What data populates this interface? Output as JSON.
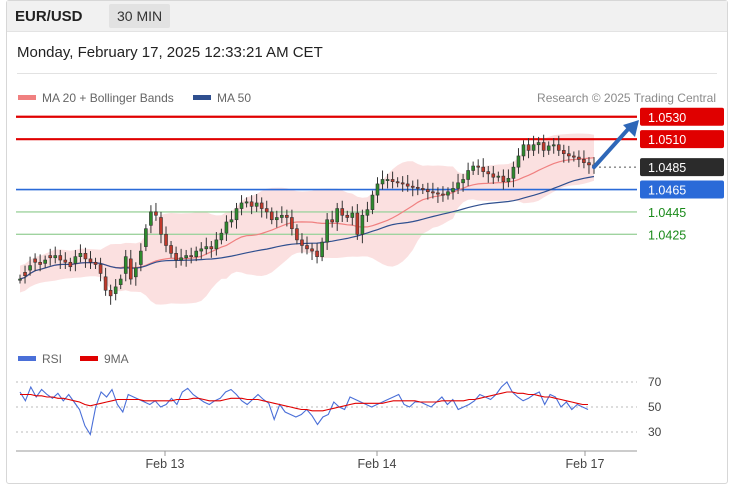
{
  "header": {
    "pair": "EUR/USD",
    "timeframe": "30 MIN"
  },
  "timestamp": "Monday, February 17, 2025 12:33:21 AM CET",
  "colors": {
    "ma20": "#f08080",
    "ma50": "#2f4f8f",
    "resistance": "#e00000",
    "support_blue": "#2a6ad8",
    "support_green": "#1a8a1a",
    "current": "#2b2b2b",
    "rsi": "#4a6fd8",
    "rsi_ma": "#e00000",
    "candle_up": "#2d8a2d",
    "candle_down": "#c0392b",
    "arrow": "#2e67b8"
  },
  "icons": {
    "projection": "arrow-up-right-icon"
  },
  "chart_data": [
    {
      "type": "candlestick",
      "legend": [
        {
          "name": "MA 20 + Bollinger Bands",
          "color": "#f08080"
        },
        {
          "name": "MA 50",
          "color": "#2f4f8f"
        }
      ],
      "legend_position": "top-left",
      "credit": "Research © 2025 Trading Central",
      "x_ticks": [
        "Feb 13",
        "Feb 14",
        "Feb 17"
      ],
      "ylim": [
        1.0335,
        1.0545
      ],
      "levels": [
        {
          "value": 1.053,
          "label": "1.0530",
          "kind": "resistance"
        },
        {
          "value": 1.051,
          "label": "1.0510",
          "kind": "resistance"
        },
        {
          "value": 1.0485,
          "label": "1.0485",
          "kind": "current"
        },
        {
          "value": 1.0465,
          "label": "1.0465",
          "kind": "support_blue"
        },
        {
          "value": 1.0445,
          "label": "1.0445",
          "kind": "support_green"
        },
        {
          "value": 1.0425,
          "label": "1.0425",
          "kind": "support_green"
        }
      ],
      "close": [
        1.0385,
        1.0388,
        1.0397,
        1.04,
        1.0398,
        1.0402,
        1.0404,
        1.0406,
        1.0402,
        1.04,
        1.0396,
        1.0405,
        1.0408,
        1.0403,
        1.04,
        1.0398,
        1.039,
        1.0375,
        1.037,
        1.0378,
        1.0385,
        1.0405,
        1.0385,
        1.0395,
        1.041,
        1.043,
        1.0445,
        1.0442,
        1.0425,
        1.0415,
        1.0408,
        1.0402,
        1.0404,
        1.0406,
        1.0405,
        1.041,
        1.0412,
        1.0414,
        1.0412,
        1.042,
        1.0426,
        1.0436,
        1.0438,
        1.0448,
        1.0453,
        1.0454,
        1.045,
        1.0453,
        1.0448,
        1.0445,
        1.0438,
        1.044,
        1.0442,
        1.044,
        1.043,
        1.042,
        1.0415,
        1.0412,
        1.041,
        1.0405,
        1.0418,
        1.0438,
        1.0436,
        1.0448,
        1.0442,
        1.044,
        1.0444,
        1.0425,
        1.0442,
        1.0447,
        1.046,
        1.047,
        1.0474,
        1.0474,
        1.0472,
        1.0471,
        1.047,
        1.0468,
        1.0467,
        1.0466,
        1.0465,
        1.0463,
        1.0462,
        1.0461,
        1.046,
        1.0463,
        1.0466,
        1.0471,
        1.0474,
        1.0482,
        1.0486,
        1.0485,
        1.0481,
        1.0479,
        1.0476,
        1.0477,
        1.0472,
        1.0475,
        1.0485,
        1.0495,
        1.0505,
        1.05,
        1.0505,
        1.0507,
        1.05,
        1.0504,
        1.0505,
        1.05,
        1.0497,
        1.0495,
        1.0494,
        1.0492,
        1.0489,
        1.0487,
        1.0485
      ],
      "open_offset": [
        0,
        0.0003,
        -0.0004,
        0.0003,
        0.0002,
        -0.0003,
        0.0002,
        -0.0002,
        0.0004,
        0.0002,
        0.0004,
        -0.0006,
        -0.0003,
        0.0005,
        0.0003,
        0.0002,
        0.0008,
        0.0012,
        0.0005,
        -0.0006,
        -0.0005,
        -0.0015,
        0.0018,
        -0.0008,
        -0.0012,
        -0.0016,
        -0.0012,
        0.0003,
        0.0015,
        0.001,
        0.0007,
        0.0006,
        -0.0002,
        -0.0002,
        0.0001,
        -0.0005,
        -0.0002,
        -0.0002,
        0.0002,
        -0.0008,
        -0.0006,
        -0.001,
        -0.0002,
        -0.001,
        -0.0005,
        -0.0001,
        0.0004,
        -0.0003,
        0.0005,
        0.0003,
        0.0007,
        -0.0002,
        -0.0002,
        0.0002,
        0.001,
        0.001,
        0.0005,
        0.0003,
        0.0002,
        0.0005,
        -0.0013,
        -0.002,
        0.0002,
        -0.0012,
        0.0006,
        0.0002,
        -0.0004,
        0.0019,
        -0.0017,
        -0.0005,
        -0.0013,
        -0.001,
        -0.0004,
        0,
        0.0002,
        0.0001,
        0.0001,
        0.0002,
        0.0001,
        0.0001,
        0.0001,
        0.0002,
        0.0001,
        0.0001,
        0.0001,
        -0.0003,
        -0.0003,
        -0.0005,
        -0.0003,
        -0.0008,
        -0.0004,
        0.0001,
        0.0004,
        0.0002,
        0.0003,
        -0.0001,
        0.0005,
        -0.0003,
        -0.001,
        -0.001,
        -0.001,
        0.0005,
        -0.0005,
        -0.0002,
        0.0007,
        -0.0004,
        -0.0001,
        0.0005,
        0.0003,
        0.0002,
        0.0001,
        0.0002,
        0.0003,
        0.0002,
        0.0002
      ],
      "projection": {
        "from": 1.0485,
        "to": 1.053
      }
    },
    {
      "type": "line",
      "legend": [
        {
          "name": "RSI",
          "color": "#4a6fd8"
        },
        {
          "name": "9MA",
          "color": "#e00000"
        }
      ],
      "y_ticks": [
        "70",
        "50",
        "30"
      ],
      "ylim": [
        22,
        78
      ],
      "rsi": [
        62,
        55,
        66,
        58,
        64,
        60,
        57,
        61,
        55,
        60,
        54,
        48,
        35,
        28,
        50,
        62,
        58,
        64,
        52,
        46,
        60,
        58,
        56,
        54,
        52,
        55,
        50,
        52,
        57,
        52,
        62,
        65,
        60,
        57,
        54,
        52,
        55,
        57,
        62,
        64,
        60,
        55,
        52,
        56,
        60,
        56,
        53,
        40,
        52,
        46,
        44,
        42,
        44,
        48,
        43,
        36,
        42,
        44,
        54,
        50,
        48,
        58,
        56,
        54,
        52,
        50,
        52,
        54,
        56,
        58,
        60,
        52,
        50,
        54,
        54,
        52,
        50,
        54,
        58,
        52,
        56,
        48,
        50,
        52,
        55,
        60,
        58,
        56,
        60,
        66,
        70,
        62,
        58,
        55,
        57,
        60,
        62,
        52,
        60,
        58,
        50,
        54,
        48,
        52,
        50,
        48
      ],
      "rsi_ma": [
        60,
        60,
        60,
        59,
        59,
        58,
        58,
        57,
        57,
        56,
        55,
        54,
        52,
        51,
        52,
        53,
        54,
        55,
        56,
        56,
        56,
        56,
        56,
        55,
        55,
        55,
        55,
        55,
        55,
        56,
        56,
        56,
        57,
        57,
        56,
        55,
        55,
        55,
        56,
        57,
        57,
        57,
        56,
        56,
        56,
        55,
        54,
        53,
        52,
        51,
        50,
        49,
        48,
        48,
        47,
        47,
        47,
        48,
        49,
        50,
        51,
        52,
        53,
        53,
        53,
        53,
        53,
        53,
        54,
        55,
        55,
        55,
        55,
        55,
        54,
        54,
        54,
        54,
        55,
        55,
        55,
        55,
        55,
        56,
        56,
        57,
        58,
        59,
        60,
        61,
        62,
        62,
        61,
        61,
        60,
        60,
        59,
        58,
        58,
        57,
        56,
        55,
        54,
        53,
        52,
        52
      ]
    }
  ]
}
